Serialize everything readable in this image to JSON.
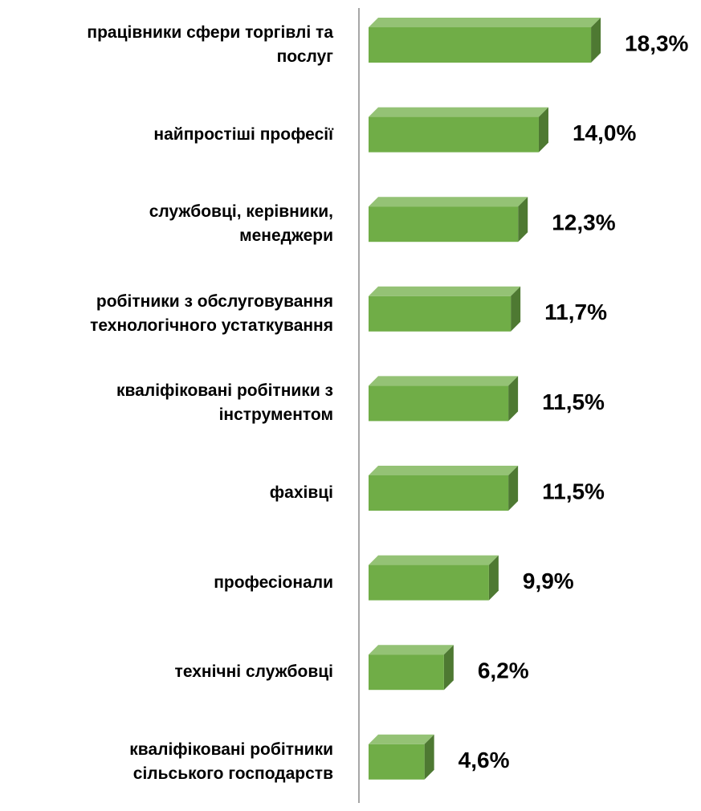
{
  "chart_data": {
    "type": "bar",
    "orientation": "horizontal",
    "categories": [
      "працівники сфери торгівлі та\nпослуг",
      "найпростіші професії",
      "службовці, керівники,\nменеджери",
      "робітники з обслуговування\nтехнологічного устаткування",
      "кваліфіковані робітники з\nінструментом",
      "фахівці",
      "професіонали",
      "технічні службовці",
      "кваліфіковані робітники\nсільського господарств"
    ],
    "values": [
      18.3,
      14.0,
      12.3,
      11.7,
      11.5,
      11.5,
      9.9,
      6.2,
      4.6
    ],
    "value_labels": [
      "18,3%",
      "14,0%",
      "12,3%",
      "11,7%",
      "11,5%",
      "11,5%",
      "9,9%",
      "6,2%",
      "4,6%"
    ],
    "color": "#70ad47"
  }
}
